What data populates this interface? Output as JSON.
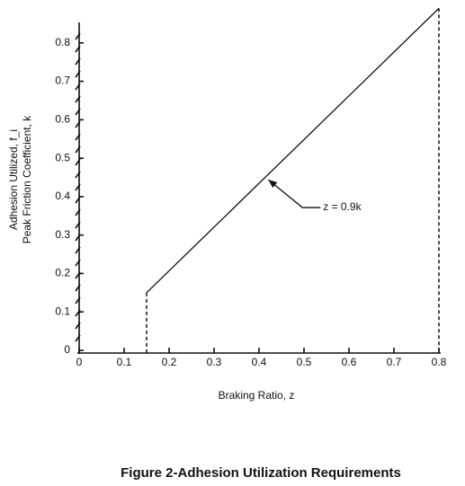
{
  "chart_data": {
    "type": "line",
    "caption": "Figure 2-Adhesion Utilization Requirements",
    "x_label": "Braking Ratio, z",
    "y_label": [
      "Adhesion Utilized, f_i",
      "Peak Friction Coefficient, k"
    ],
    "annotation": "z = 0.9k",
    "x": [
      0.15,
      0.8
    ],
    "series": [
      {
        "color": "#111111",
        "values": [
          0.15,
          0.89
        ]
      }
    ],
    "xlim": [
      0,
      0.8
    ],
    "ylim": [
      0,
      0.9
    ],
    "xticks": [
      0,
      0.1,
      0.2,
      0.3,
      0.4,
      0.5,
      0.6,
      0.7,
      0.8
    ],
    "yticks": [
      0,
      0.1,
      0.2,
      0.3,
      0.4,
      0.5,
      0.6,
      0.7,
      0.8
    ],
    "grid": false
  }
}
